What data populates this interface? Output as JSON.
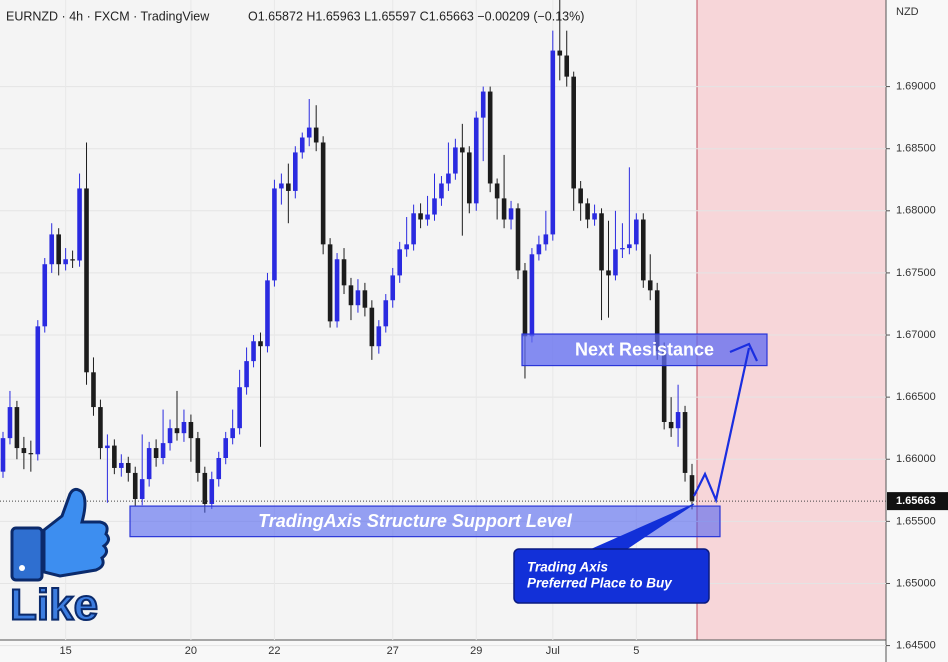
{
  "chart_data": {
    "type": "candlestick",
    "title": "EURNZD · 4h · FXCM · TradingView",
    "ohlc_legend": "O1.65872 H1.65963 L1.65597 C1.65663 −0.00209 (−0.13%)",
    "currency": "NZD",
    "up_color": "#2a2ae0",
    "down_color": "#1c1c1c",
    "grid": true,
    "categories": [
      null,
      null,
      null,
      null,
      null,
      null,
      null,
      null,
      null,
      "15",
      null,
      null,
      null,
      null,
      null,
      null,
      null,
      null,
      null,
      null,
      null,
      null,
      null,
      null,
      null,
      null,
      null,
      "20",
      null,
      null,
      null,
      null,
      null,
      null,
      null,
      null,
      null,
      null,
      null,
      "22",
      null,
      null,
      null,
      null,
      null,
      null,
      null,
      null,
      null,
      null,
      null,
      null,
      null,
      null,
      null,
      null,
      "27",
      null,
      null,
      null,
      null,
      null,
      null,
      null,
      null,
      null,
      null,
      null,
      "29",
      null,
      null,
      null,
      null,
      null,
      null,
      null,
      null,
      null,
      null,
      "Jul",
      null,
      null,
      null,
      null,
      null,
      null,
      null,
      null,
      null,
      null,
      null,
      "5",
      null,
      null,
      null,
      null,
      null,
      null,
      null,
      null
    ],
    "open": [
      1.659,
      1.6617,
      1.6642,
      1.6609,
      1.6605,
      1.6604,
      1.6707,
      1.6757,
      1.6781,
      1.6757,
      1.6761,
      1.676,
      1.6818,
      1.667,
      1.6642,
      1.6609,
      1.6611,
      1.6593,
      1.6597,
      1.6589,
      1.6568,
      1.6584,
      1.6609,
      1.6601,
      1.6613,
      1.6625,
      1.6621,
      1.663,
      1.6617,
      1.6589,
      1.6564,
      1.6584,
      1.6601,
      1.6617,
      1.6625,
      1.6658,
      1.6679,
      1.6695,
      1.6691,
      1.6744,
      1.6818,
      1.6822,
      1.6816,
      1.6847,
      1.6859,
      1.6867,
      1.6855,
      1.6773,
      1.6711,
      1.6761,
      1.674,
      1.6724,
      1.6736,
      1.6722,
      1.6691,
      1.6707,
      1.6728,
      1.6748,
      1.6769,
      1.6773,
      1.6798,
      1.6793,
      1.6797,
      1.681,
      1.6822,
      1.683,
      1.6851,
      1.6847,
      1.6806,
      1.6875,
      1.6896,
      1.6822,
      1.681,
      1.6793,
      1.6802,
      1.6752,
      1.6699,
      1.6765,
      1.6773,
      1.6781,
      1.6929,
      1.6925,
      1.6908,
      1.6818,
      1.6806,
      1.6793,
      1.6798,
      1.6752,
      1.6748,
      1.6769,
      1.677,
      1.6773,
      1.6793,
      1.6744,
      1.6736,
      1.6687,
      1.663,
      1.6625,
      1.6638,
      1.65872
    ],
    "high": [
      1.6622,
      1.6655,
      1.6647,
      1.6618,
      1.6615,
      1.6712,
      1.6762,
      1.679,
      1.6786,
      1.677,
      1.6768,
      1.683,
      1.6855,
      1.6682,
      1.6648,
      1.662,
      1.6616,
      1.6604,
      1.6602,
      1.6594,
      1.662,
      1.6614,
      1.6616,
      1.664,
      1.6632,
      1.6655,
      1.664,
      1.6636,
      1.6622,
      1.6594,
      1.659,
      1.6606,
      1.6622,
      1.664,
      1.6672,
      1.669,
      1.67,
      1.6702,
      1.675,
      1.6825,
      1.683,
      1.6838,
      1.6852,
      1.6863,
      1.689,
      1.6885,
      1.686,
      1.6778,
      1.6766,
      1.677,
      1.6746,
      1.6745,
      1.6742,
      1.6728,
      1.6712,
      1.6733,
      1.6754,
      1.6775,
      1.6795,
      1.6805,
      1.6806,
      1.6812,
      1.683,
      1.6828,
      1.6855,
      1.6858,
      1.687,
      1.6852,
      1.688,
      1.69,
      1.69,
      1.6826,
      1.6845,
      1.6808,
      1.6806,
      1.6758,
      1.677,
      1.678,
      1.68,
      1.6945,
      1.6995,
      1.6945,
      1.6912,
      1.6824,
      1.681,
      1.6805,
      1.6802,
      1.6792,
      1.68,
      1.679,
      1.6835,
      1.6798,
      1.6798,
      1.6765,
      1.6742,
      1.6694,
      1.665,
      1.666,
      1.6643,
      1.65963
    ],
    "low": [
      1.6585,
      1.6612,
      1.66,
      1.6592,
      1.659,
      1.6599,
      1.6702,
      1.675,
      1.6748,
      1.6752,
      1.6754,
      1.6755,
      1.666,
      1.6635,
      1.66,
      1.6565,
      1.6588,
      1.6586,
      1.6582,
      1.6562,
      1.6563,
      1.6578,
      1.6594,
      1.6596,
      1.6607,
      1.6615,
      1.6614,
      1.6598,
      1.6582,
      1.6557,
      1.656,
      1.6578,
      1.6596,
      1.6612,
      1.662,
      1.6652,
      1.6674,
      1.661,
      1.6686,
      1.6739,
      1.6805,
      1.679,
      1.681,
      1.6842,
      1.6852,
      1.6848,
      1.6765,
      1.6706,
      1.6706,
      1.6733,
      1.6712,
      1.6718,
      1.6715,
      1.668,
      1.6685,
      1.6702,
      1.6722,
      1.6742,
      1.6763,
      1.6768,
      1.6786,
      1.6788,
      1.6792,
      1.6804,
      1.6816,
      1.6825,
      1.678,
      1.6798,
      1.68,
      1.684,
      1.6815,
      1.6793,
      1.6786,
      1.6785,
      1.6745,
      1.6665,
      1.6694,
      1.676,
      1.6768,
      1.6776,
      1.6905,
      1.69,
      1.68,
      1.6792,
      1.6786,
      1.6788,
      1.6712,
      1.6714,
      1.6744,
      1.6762,
      1.6765,
      1.6768,
      1.6738,
      1.6728,
      1.668,
      1.6624,
      1.6618,
      1.661,
      1.6582,
      1.65597
    ],
    "close": [
      1.6617,
      1.6642,
      1.6609,
      1.6605,
      1.6604,
      1.6707,
      1.6757,
      1.6781,
      1.6757,
      1.6761,
      1.676,
      1.6818,
      1.667,
      1.6642,
      1.6609,
      1.6611,
      1.6593,
      1.6597,
      1.6589,
      1.6568,
      1.6584,
      1.6609,
      1.6601,
      1.6613,
      1.6625,
      1.6621,
      1.663,
      1.6617,
      1.6589,
      1.6564,
      1.6584,
      1.6601,
      1.6617,
      1.6625,
      1.6658,
      1.6679,
      1.6695,
      1.6691,
      1.6744,
      1.6818,
      1.6822,
      1.6816,
      1.6847,
      1.6859,
      1.6867,
      1.6855,
      1.6773,
      1.6711,
      1.6761,
      1.674,
      1.6724,
      1.6736,
      1.6722,
      1.6691,
      1.6707,
      1.6728,
      1.6748,
      1.6769,
      1.6773,
      1.6798,
      1.6793,
      1.6797,
      1.681,
      1.6822,
      1.683,
      1.6851,
      1.6847,
      1.6806,
      1.6875,
      1.6896,
      1.6822,
      1.681,
      1.6793,
      1.6802,
      1.6752,
      1.6699,
      1.6765,
      1.6773,
      1.6781,
      1.6929,
      1.6925,
      1.6908,
      1.6818,
      1.6806,
      1.6793,
      1.6798,
      1.6752,
      1.6748,
      1.6769,
      1.677,
      1.6773,
      1.6793,
      1.6744,
      1.6736,
      1.6687,
      1.663,
      1.6625,
      1.6638,
      1.6589,
      1.65663
    ],
    "ylim": [
      1.64545,
      1.69697
    ],
    "yticks": [
      {
        "value": 1.645,
        "label": "1.64500"
      },
      {
        "value": 1.65,
        "label": "1.65000"
      },
      {
        "value": 1.655,
        "label": "1.65500"
      },
      {
        "value": 1.66,
        "label": "1.66000"
      },
      {
        "value": 1.665,
        "label": "1.66500"
      },
      {
        "value": 1.67,
        "label": "1.67000"
      },
      {
        "value": 1.675,
        "label": "1.67500"
      },
      {
        "value": 1.68,
        "label": "1.68000"
      },
      {
        "value": 1.685,
        "label": "1.68500"
      },
      {
        "value": 1.69,
        "label": "1.69000"
      }
    ],
    "last_price": 1.65663,
    "zones": [
      {
        "label": "TradingAxis Structure Support Level",
        "range": [
          1.65377,
          1.65623
        ]
      },
      {
        "label": "Next Resistance",
        "range": [
          1.66754,
          1.67008
        ]
      }
    ],
    "callout": [
      "Trading Axis",
      "Preferred Place to Buy"
    ],
    "badge": "Like"
  }
}
